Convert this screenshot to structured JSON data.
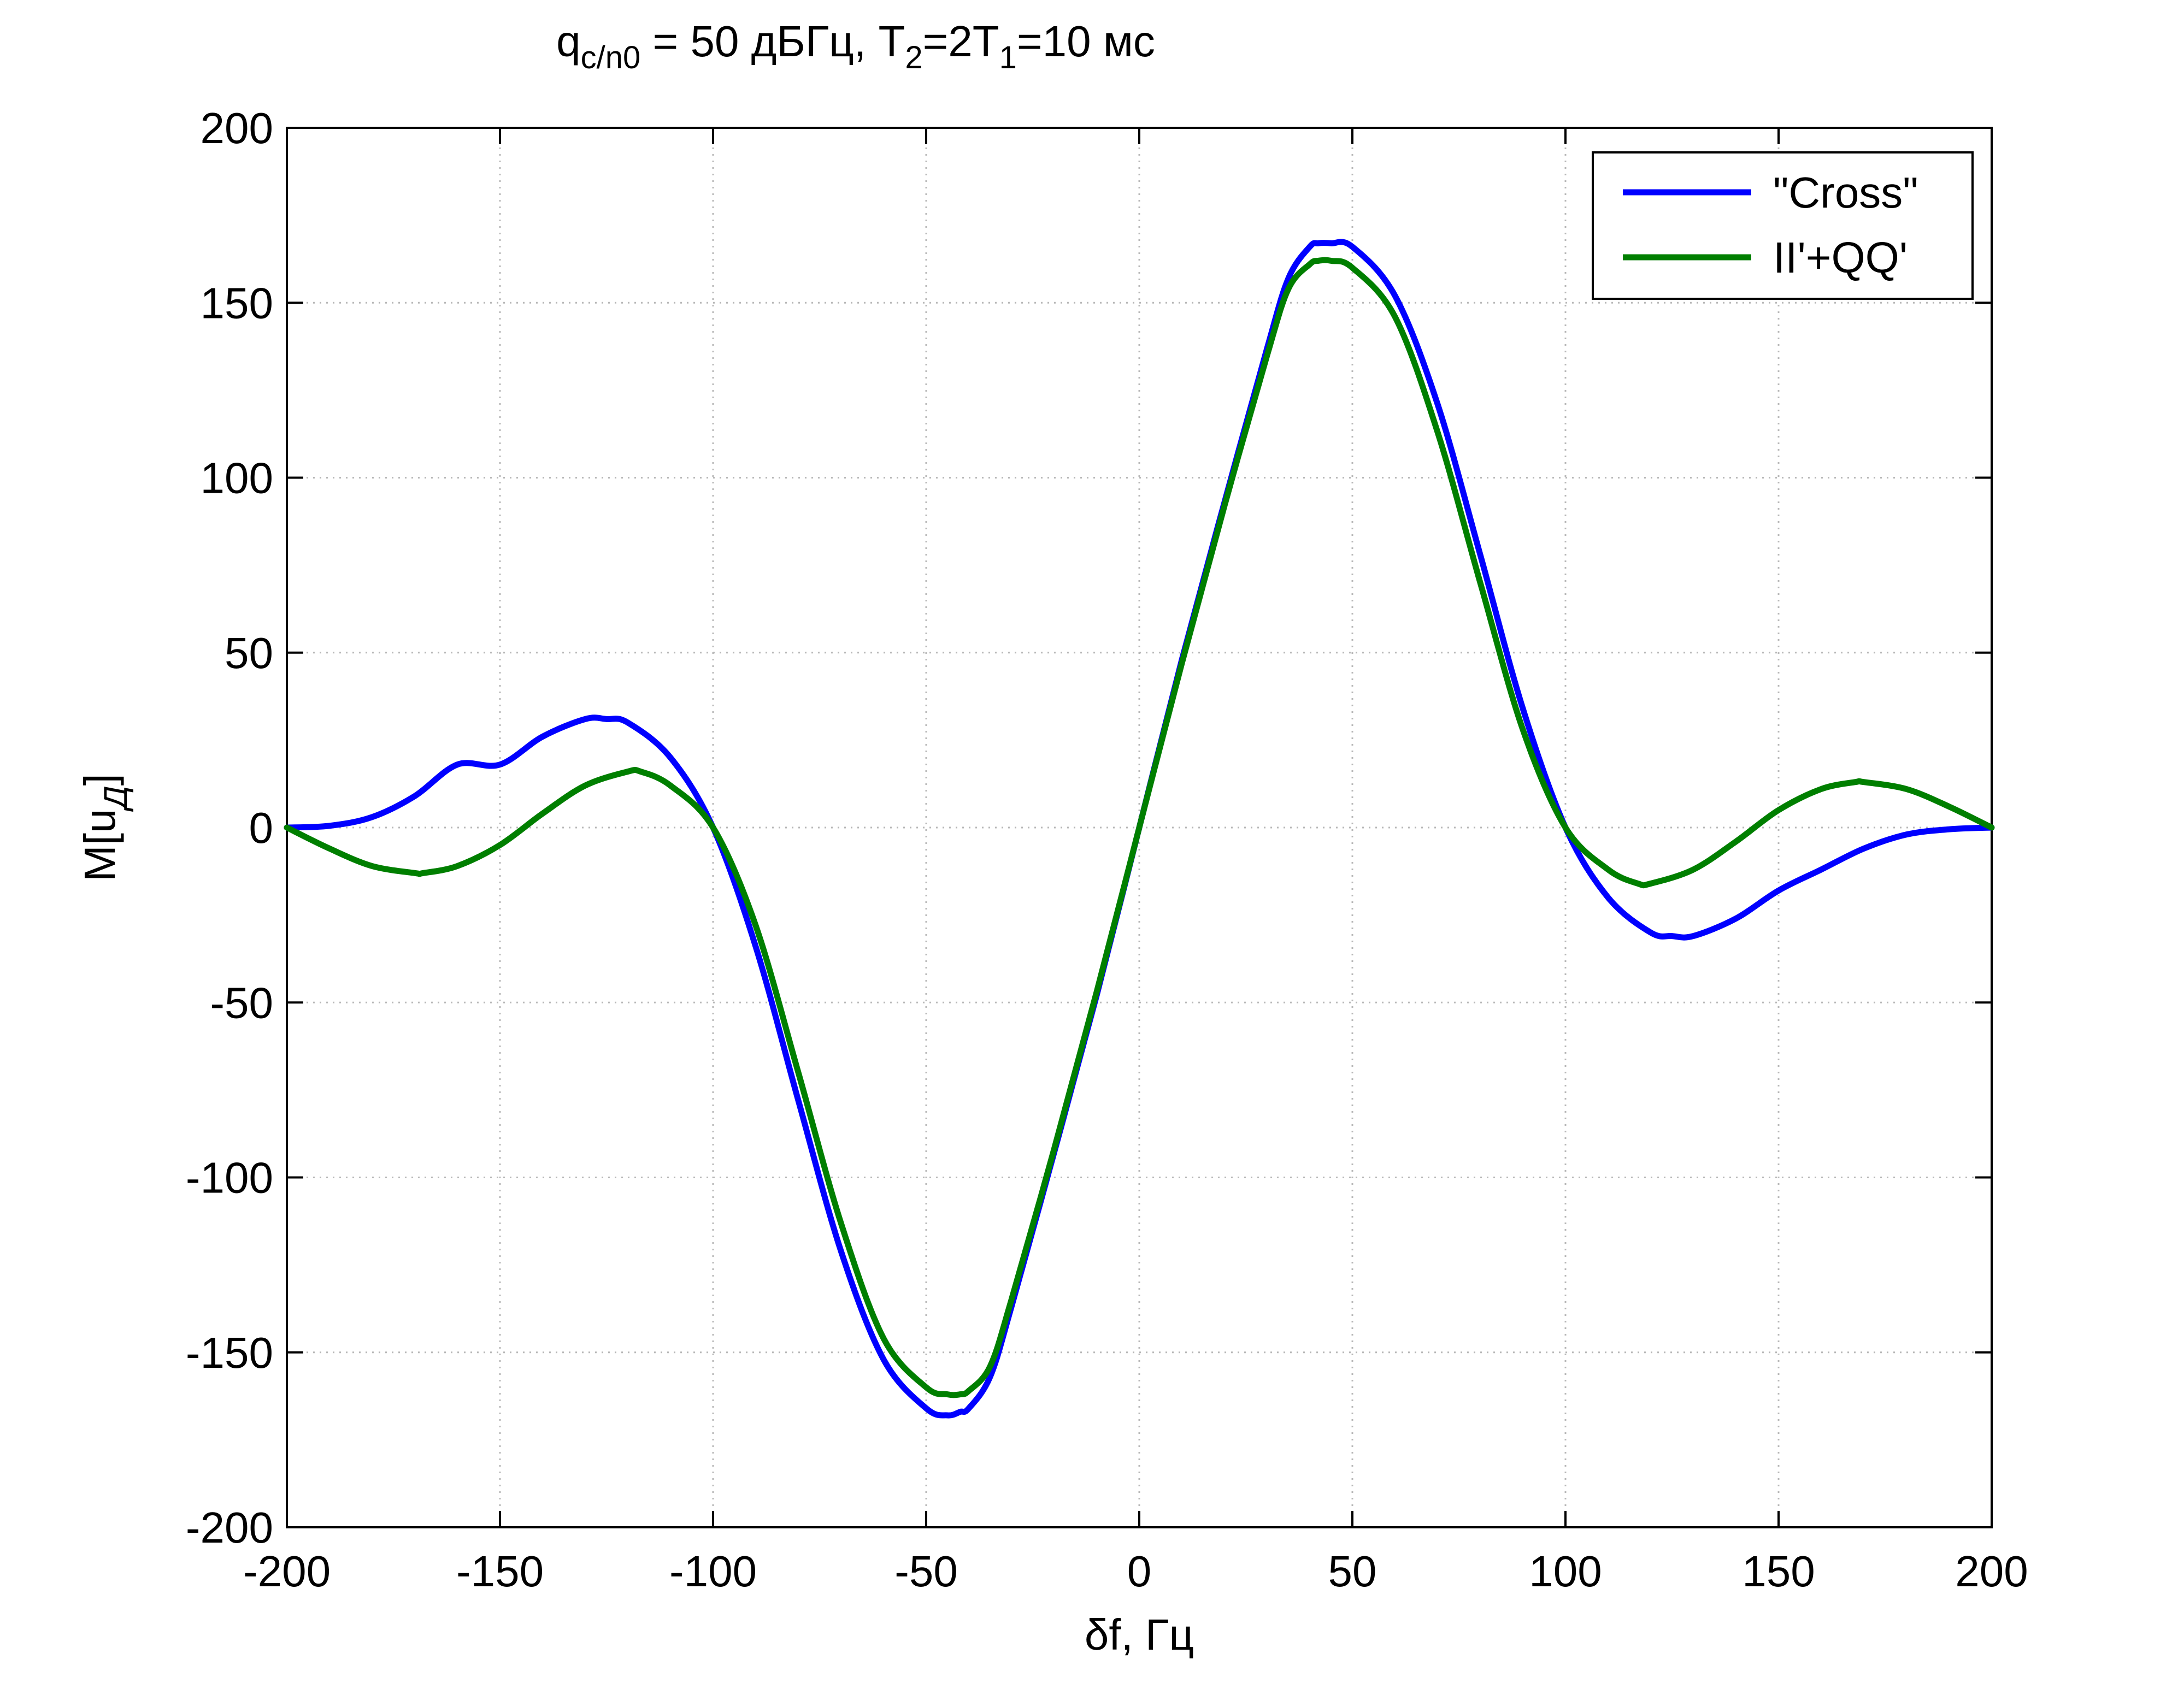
{
  "chart_data": {
    "type": "line",
    "title": {
      "parts": [
        {
          "text": "q",
          "role": "base"
        },
        {
          "text": "c/n0",
          "role": "sub"
        },
        {
          "text": " = 50 дБГц, T",
          "role": "base"
        },
        {
          "text": "2",
          "role": "sub"
        },
        {
          "text": "=2T",
          "role": "base"
        },
        {
          "text": "1",
          "role": "sub"
        },
        {
          "text": "=10 мс",
          "role": "base"
        }
      ]
    },
    "xlabel": "δf, Гц",
    "ylabel": {
      "base": "M[u",
      "sub": "Д",
      "close": "]"
    },
    "xlim": [
      -200,
      200
    ],
    "ylim": [
      -200,
      200
    ],
    "xticks": [
      -200,
      -150,
      -100,
      -50,
      0,
      50,
      100,
      150,
      200
    ],
    "yticks": [
      -200,
      -150,
      -100,
      -50,
      0,
      50,
      100,
      150,
      200
    ],
    "xtick_labels": [
      "-200",
      "-150",
      "-100",
      "-50",
      "0",
      "50",
      "100",
      "150",
      "200"
    ],
    "ytick_labels": [
      "-200",
      "-150",
      "-100",
      "-50",
      "0",
      "50",
      "100",
      "150",
      "200"
    ],
    "grid": true,
    "legend_position": "top-right",
    "series": [
      {
        "name": "\"Cross\"",
        "color": "#0000ff",
        "x": [
          -200,
          -190,
          -180,
          -170,
          -160,
          -150,
          -140,
          -130,
          -125,
          -120,
          -110,
          -100,
          -90,
          -80,
          -70,
          -60,
          -50,
          -45,
          -42,
          -40,
          -35,
          -30,
          -20,
          -10,
          0,
          10,
          20,
          30,
          35,
          40,
          42,
          45,
          50,
          60,
          70,
          80,
          90,
          100,
          110,
          120,
          125,
          130,
          140,
          150,
          160,
          170,
          180,
          190,
          200
        ],
        "y": [
          0,
          0.5,
          3,
          9,
          18,
          18,
          26,
          31,
          31,
          30,
          20,
          0,
          -34,
          -78,
          -121,
          -152,
          -166,
          -168,
          -167,
          -166,
          -157,
          -137,
          -93,
          -48,
          0,
          48,
          93,
          137,
          157,
          166,
          167,
          167,
          166,
          152,
          121,
          78,
          34,
          0,
          -20,
          -30,
          -31,
          -31,
          -26,
          -18,
          -12,
          -6,
          -2,
          -0.5,
          0
        ]
      },
      {
        "name": "II'+QQ'",
        "color": "#007f00",
        "x": [
          -200,
          -190,
          -180,
          -170,
          -168,
          -160,
          -150,
          -140,
          -130,
          -120,
          -117,
          -110,
          -100,
          -90,
          -80,
          -70,
          -60,
          -50,
          -45,
          -42,
          -40,
          -35,
          -30,
          -20,
          -10,
          0,
          10,
          20,
          30,
          35,
          40,
          42,
          45,
          50,
          60,
          70,
          80,
          90,
          100,
          110,
          117,
          120,
          130,
          140,
          150,
          160,
          168,
          170,
          180,
          190,
          200
        ],
        "y": [
          0,
          -6,
          -11,
          -13,
          -13,
          -11,
          -5,
          4,
          12,
          16,
          16,
          12,
          0,
          -28,
          -70,
          -113,
          -146,
          -160,
          -162,
          -162,
          -161,
          -154,
          -135,
          -92,
          -47,
          0,
          47,
          92,
          135,
          154,
          161,
          162,
          162,
          160,
          146,
          113,
          70,
          28,
          0,
          -12,
          -16,
          -16,
          -12,
          -4,
          5,
          11,
          13,
          13,
          11,
          6,
          0
        ]
      }
    ]
  }
}
